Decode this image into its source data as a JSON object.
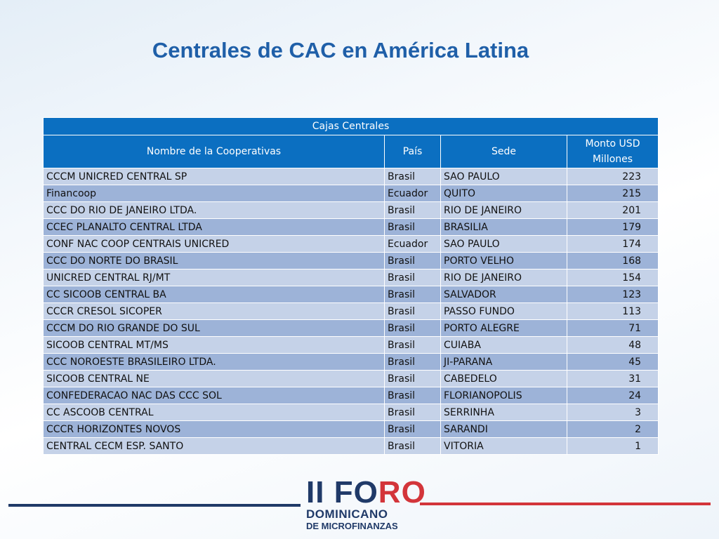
{
  "title": "Centrales de CAC en América Latina",
  "table": {
    "group_header": "Cajas Centrales",
    "columns": {
      "nombre": "Nombre de la Cooperativas",
      "pais": "País",
      "sede": "Sede",
      "monto_line1": "Monto USD",
      "monto_line2": "Millones"
    },
    "rows": [
      {
        "nombre": "CCCM UNICRED CENTRAL SP",
        "pais": "Brasil",
        "sede": "SAO PAULO",
        "monto": "223"
      },
      {
        "nombre": "Financoop",
        "pais": "Ecuador",
        "sede": "QUITO",
        "monto": "215"
      },
      {
        "nombre": "CCC DO RIO DE JANEIRO LTDA.",
        "pais": "Brasil",
        "sede": "RIO DE JANEIRO",
        "monto": "201"
      },
      {
        "nombre": "CCEC PLANALTO CENTRAL LTDA",
        "pais": "Brasil",
        "sede": "BRASILIA",
        "monto": "179"
      },
      {
        "nombre": "CONF NAC COOP CENTRAIS UNICRED",
        "pais": "Ecuador",
        "sede": "SAO PAULO",
        "monto": "174"
      },
      {
        "nombre": "CCC DO NORTE DO BRASIL",
        "pais": "Brasil",
        "sede": "PORTO VELHO",
        "monto": "168"
      },
      {
        "nombre": "UNICRED CENTRAL RJ/MT",
        "pais": "Brasil",
        "sede": "RIO DE JANEIRO",
        "monto": "154"
      },
      {
        "nombre": "CC SICOOB CENTRAL BA",
        "pais": "Brasil",
        "sede": "SALVADOR",
        "monto": "123"
      },
      {
        "nombre": "CCCR CRESOL SICOPER",
        "pais": "Brasil",
        "sede": "PASSO FUNDO",
        "monto": "113"
      },
      {
        "nombre": "CCCM DO RIO GRANDE DO SUL",
        "pais": "Brasil",
        "sede": "PORTO ALEGRE",
        "monto": "71"
      },
      {
        "nombre": "SICOOB CENTRAL MT/MS",
        "pais": "Brasil",
        "sede": "CUIABA",
        "monto": "48"
      },
      {
        "nombre": "CCC NOROESTE BRASILEIRO LTDA.",
        "pais": "Brasil",
        "sede": "JI-PARANA",
        "monto": "45"
      },
      {
        "nombre": "SICOOB CENTRAL NE",
        "pais": "Brasil",
        "sede": "CABEDELO",
        "monto": "31"
      },
      {
        "nombre": "CONFEDERACAO NAC DAS CCC SOL",
        "pais": "Brasil",
        "sede": "FLORIANOPOLIS",
        "monto": "24"
      },
      {
        "nombre": "CC ASCOOB CENTRAL",
        "pais": "Brasil",
        "sede": "SERRINHA",
        "monto": "3"
      },
      {
        "nombre": "CCCR HORIZONTES NOVOS",
        "pais": "Brasil",
        "sede": "SARANDI",
        "monto": "2"
      },
      {
        "nombre": "CENTRAL CECM ESP. SANTO",
        "pais": "Brasil",
        "sede": "VITORIA",
        "monto": "1"
      }
    ]
  },
  "logo": {
    "roman": "II",
    "fo": "FO",
    "ro": "RO",
    "line1": "DOMINICANO",
    "line2": "DE MICROFINANZAS"
  },
  "colors": {
    "title": "#1f5fa8",
    "header_bg": "#0b6fc1",
    "row_light": "#c5d2e8",
    "row_dark": "#9db3d8",
    "navy": "#203a68",
    "red": "#d3353a"
  }
}
